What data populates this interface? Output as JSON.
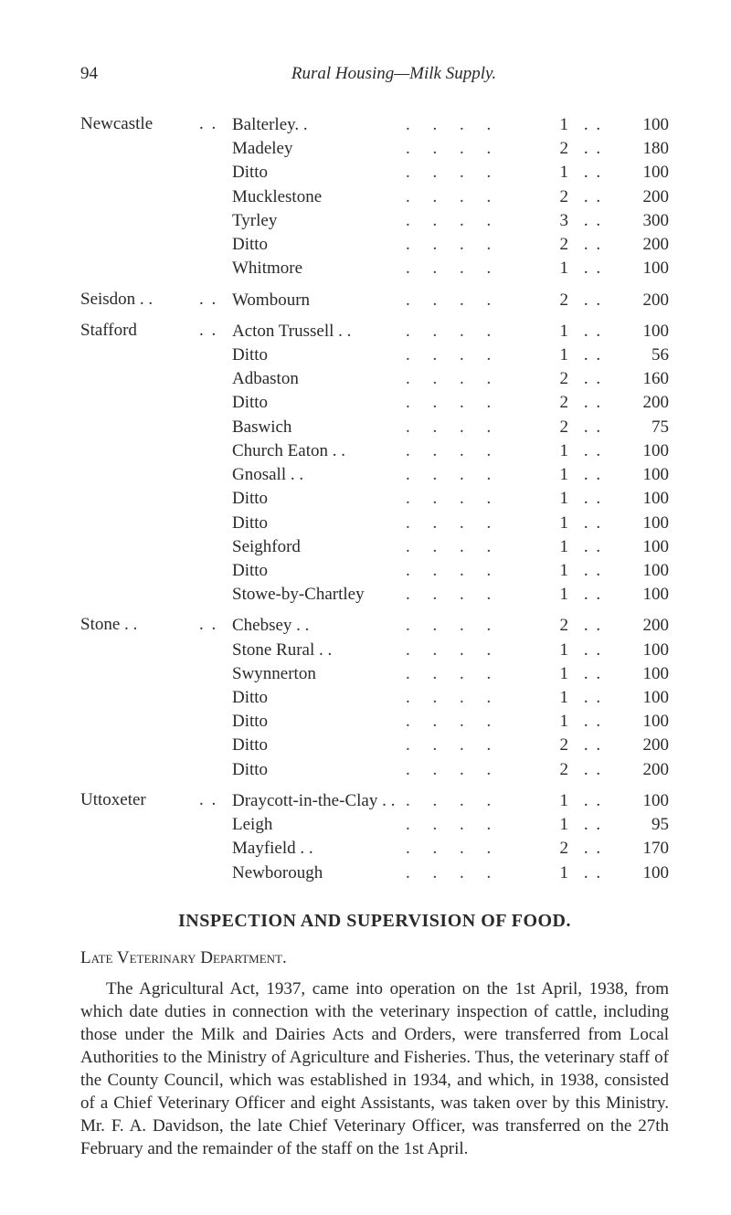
{
  "page_number": "94",
  "running_title": "Rural Housing—Milk Supply.",
  "districts": [
    {
      "name": "Newcastle",
      "lead_dots": ". .",
      "rows": [
        {
          "place": "Balterley. .",
          "a": "1",
          "b": "100"
        },
        {
          "place": "Madeley",
          "a": "2",
          "b": "180"
        },
        {
          "place": "Ditto",
          "a": "1",
          "b": "100"
        },
        {
          "place": "Mucklestone",
          "a": "2",
          "b": "200"
        },
        {
          "place": "Tyrley",
          "a": "3",
          "b": "300"
        },
        {
          "place": "Ditto",
          "a": "2",
          "b": "200"
        },
        {
          "place": "Whitmore",
          "a": "1",
          "b": "100"
        }
      ]
    },
    {
      "name": "Seisdon . .",
      "lead_dots": ". .",
      "rows": [
        {
          "place": "Wombourn",
          "a": "2",
          "b": "200"
        }
      ]
    },
    {
      "name": "Stafford",
      "lead_dots": ". .",
      "rows": [
        {
          "place": "Acton Trussell . .",
          "a": "1",
          "b": "100"
        },
        {
          "place": "Ditto",
          "a": "1",
          "b": "56"
        },
        {
          "place": "Adbaston",
          "a": "2",
          "b": "160"
        },
        {
          "place": "Ditto",
          "a": "2",
          "b": "200"
        },
        {
          "place": "Baswich",
          "a": "2",
          "b": "75"
        },
        {
          "place": "Church Eaton . .",
          "a": "1",
          "b": "100"
        },
        {
          "place": "Gnosall . .",
          "a": "1",
          "b": "100"
        },
        {
          "place": "Ditto",
          "a": "1",
          "b": "100"
        },
        {
          "place": "Ditto",
          "a": "1",
          "b": "100"
        },
        {
          "place": "Seighford",
          "a": "1",
          "b": "100"
        },
        {
          "place": "Ditto",
          "a": "1",
          "b": "100"
        },
        {
          "place": "Stowe-by-Chartley",
          "a": "1",
          "b": "100"
        }
      ]
    },
    {
      "name": "Stone   . .",
      "lead_dots": ". .",
      "rows": [
        {
          "place": "Chebsey . .",
          "a": "2",
          "b": "200"
        },
        {
          "place": "Stone Rural . .",
          "a": "1",
          "b": "100"
        },
        {
          "place": "Swynnerton",
          "a": "1",
          "b": "100"
        },
        {
          "place": "Ditto",
          "a": "1",
          "b": "100"
        },
        {
          "place": "Ditto",
          "a": "1",
          "b": "100"
        },
        {
          "place": "Ditto",
          "a": "2",
          "b": "200"
        },
        {
          "place": "Ditto",
          "a": "2",
          "b": "200"
        }
      ]
    },
    {
      "name": "Uttoxeter",
      "lead_dots": ". .",
      "rows": [
        {
          "place": "Draycott-in-the-Clay  . .",
          "a": "1",
          "b": "100"
        },
        {
          "place": "Leigh",
          "a": "1",
          "b": "95"
        },
        {
          "place": "Mayfield . .",
          "a": "2",
          "b": "170"
        },
        {
          "place": "Newborough",
          "a": "1",
          "b": "100"
        }
      ]
    }
  ],
  "leader_fill": ". .    . .",
  "mid_fill": ". .",
  "section_title": "INSPECTION AND SUPERVISION OF FOOD.",
  "subhead": "Late Veterinary Department.",
  "paragraph": "The Agricultural Act, 1937, came into operation on the 1st April, 1938, from which date duties in connection with the veterinary inspection of cattle, including those under the Milk and Dairies Acts and Orders, were transferred from Local Authorities to the Ministry of Agriculture and Fisheries.   Thus, the veterinary staff of the County Council, which was established in 1934, and which, in 1938, consisted of a Chief Veterinary Officer and eight Assistants, was taken over by this Ministry.  Mr. F. A. Davidson, the late Chief Veterinary Officer, was transferred on the 27th February and the remainder of the staff on the 1st April."
}
